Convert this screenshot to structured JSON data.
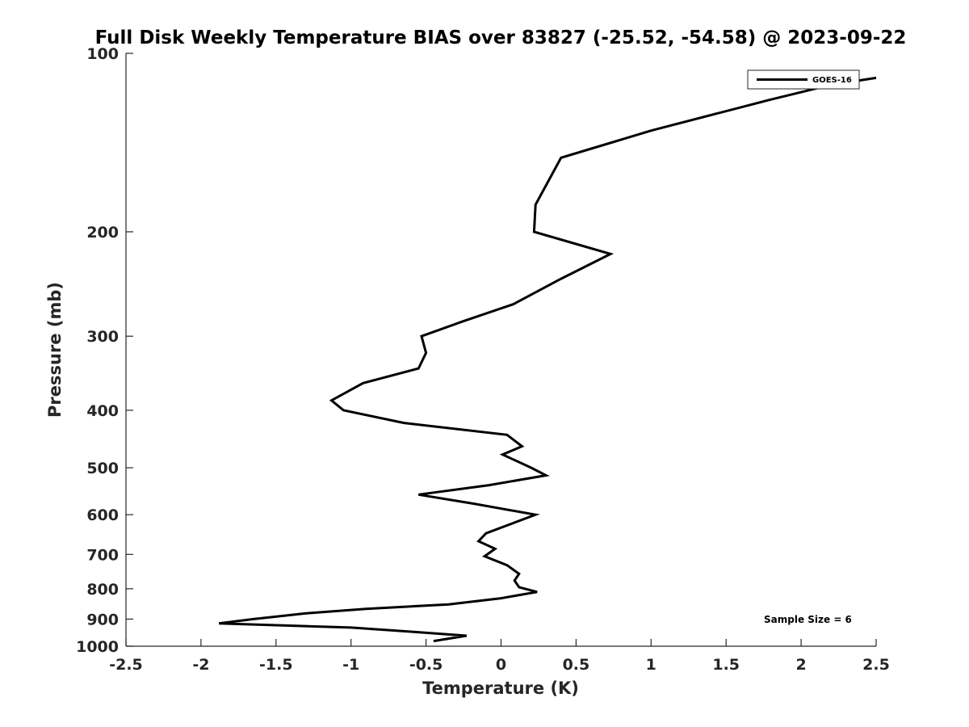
{
  "chart_data": {
    "type": "line",
    "title": "Full Disk Weekly Temperature BIAS over 83827 (-25.52, -54.58) @ 2023-09-22",
    "xlabel": "Temperature (K)",
    "ylabel": "Pressure (mb)",
    "xlim": [
      -2.5,
      2.5
    ],
    "ylim": [
      100,
      1000
    ],
    "y_scale": "log",
    "y_reversed": true,
    "grid": false,
    "legend_position": "top-right",
    "x_ticks": [
      -2.5,
      -2,
      -1.5,
      -1,
      -0.5,
      0,
      0.5,
      1,
      1.5,
      2,
      2.5
    ],
    "x_tick_labels": [
      "-2.5",
      "-2",
      "-1.5",
      "-1",
      "-0.5",
      "0",
      "0.5",
      "1",
      "1.5",
      "2",
      "2.5"
    ],
    "y_ticks": [
      100,
      200,
      300,
      400,
      500,
      600,
      700,
      800,
      900,
      1000
    ],
    "y_tick_labels": [
      "100",
      "200",
      "300",
      "400",
      "500",
      "600",
      "700",
      "800",
      "900",
      "1000"
    ],
    "series": [
      {
        "name": "GOES-16",
        "color": "#000000",
        "points": [
          {
            "x": 2.5,
            "y": 110
          },
          {
            "x": 2.2,
            "y": 113
          },
          {
            "x": 1.78,
            "y": 120
          },
          {
            "x": 1.0,
            "y": 135
          },
          {
            "x": 0.4,
            "y": 150
          },
          {
            "x": 0.23,
            "y": 180
          },
          {
            "x": 0.22,
            "y": 200
          },
          {
            "x": 0.73,
            "y": 218
          },
          {
            "x": 0.4,
            "y": 240
          },
          {
            "x": 0.08,
            "y": 265
          },
          {
            "x": -0.25,
            "y": 283
          },
          {
            "x": -0.53,
            "y": 300
          },
          {
            "x": -0.5,
            "y": 320
          },
          {
            "x": -0.55,
            "y": 340
          },
          {
            "x": -0.92,
            "y": 360
          },
          {
            "x": -1.13,
            "y": 385
          },
          {
            "x": -1.05,
            "y": 400
          },
          {
            "x": -0.65,
            "y": 420
          },
          {
            "x": 0.04,
            "y": 440
          },
          {
            "x": 0.14,
            "y": 460
          },
          {
            "x": 0.01,
            "y": 475
          },
          {
            "x": 0.2,
            "y": 500
          },
          {
            "x": 0.3,
            "y": 515
          },
          {
            "x": -0.08,
            "y": 535
          },
          {
            "x": -0.55,
            "y": 555
          },
          {
            "x": -0.18,
            "y": 575
          },
          {
            "x": 0.23,
            "y": 600
          },
          {
            "x": 0.08,
            "y": 620
          },
          {
            "x": -0.1,
            "y": 645
          },
          {
            "x": -0.15,
            "y": 665
          },
          {
            "x": -0.04,
            "y": 685
          },
          {
            "x": -0.11,
            "y": 705
          },
          {
            "x": 0.04,
            "y": 730
          },
          {
            "x": 0.12,
            "y": 755
          },
          {
            "x": 0.09,
            "y": 775
          },
          {
            "x": 0.12,
            "y": 795
          },
          {
            "x": 0.24,
            "y": 810
          },
          {
            "x": 0.0,
            "y": 830
          },
          {
            "x": -0.35,
            "y": 850
          },
          {
            "x": -0.9,
            "y": 865
          },
          {
            "x": -1.3,
            "y": 880
          },
          {
            "x": -1.65,
            "y": 900
          },
          {
            "x": -1.88,
            "y": 915
          },
          {
            "x": -1.0,
            "y": 930
          },
          {
            "x": -0.6,
            "y": 945
          },
          {
            "x": -0.23,
            "y": 960
          },
          {
            "x": -0.45,
            "y": 980
          }
        ]
      }
    ],
    "legend": {
      "entries": [
        "GOES-16"
      ]
    },
    "annotations": [
      {
        "text": "Sample Size = 6",
        "position": "bottom-right"
      }
    ]
  }
}
